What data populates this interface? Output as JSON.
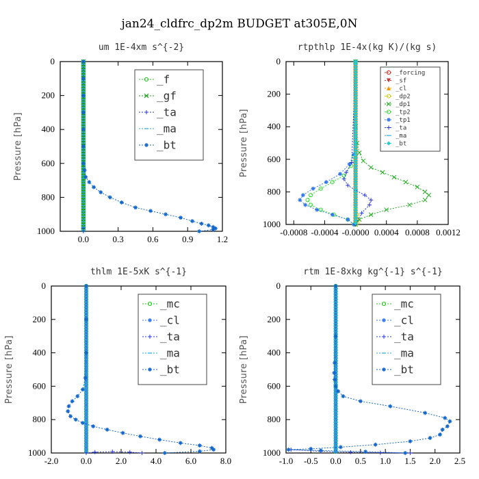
{
  "title": "jan24_cldfrc_dp2m  BUDGET at305E,0N",
  "chart_data": [
    {
      "type": "line",
      "title": "um   1E-4xm s^{-2}",
      "ylabel": "Pressure [hPa]",
      "ylim": [
        1000,
        0
      ],
      "xlim": [
        -0.2,
        1.2
      ],
      "xticks": [
        "0.0",
        "0.3",
        "0.6",
        "0.9",
        "1.2"
      ],
      "xtick_values": [
        0,
        0.3,
        0.6,
        0.9,
        1.2
      ],
      "yticks": [
        "0",
        "200",
        "400",
        "600",
        "800",
        "1000"
      ],
      "legend": {
        "position": "top-right",
        "size": "large",
        "entries": [
          "_f",
          "_gf",
          "_ta",
          "_ma",
          "_bt"
        ]
      },
      "series": [
        {
          "name": "_f",
          "color": "#22cc22",
          "marker": "o",
          "x": [
            0,
            0
          ],
          "y": [
            0,
            1000
          ]
        },
        {
          "name": "_gf",
          "color": "#119911",
          "marker": "x",
          "x": [
            0,
            0
          ],
          "y": [
            0,
            1000
          ]
        },
        {
          "name": "_ta",
          "color": "#2233ee",
          "marker": "+",
          "x": [
            0,
            0
          ],
          "y": [
            980,
            1000
          ]
        },
        {
          "name": "_ma",
          "color": "#22aadd",
          "marker": "-",
          "x": [
            0,
            0
          ],
          "y": [
            0,
            1000
          ]
        },
        {
          "name": "_bt",
          "color": "#1166cc",
          "marker": "*",
          "x": [
            0,
            0,
            0,
            0,
            0,
            0,
            0,
            0.01,
            0.02,
            0.05,
            0.09,
            0.15,
            0.23,
            0.33,
            0.45,
            0.58,
            0.71,
            0.84,
            0.94,
            1.02,
            1.08,
            1.12,
            1.14,
            1.12,
            1.0
          ],
          "y": [
            0,
            100,
            200,
            300,
            400,
            500,
            600,
            640,
            680,
            710,
            740,
            770,
            800,
            830,
            860,
            880,
            900,
            920,
            940,
            955,
            965,
            975,
            983,
            990,
            1000
          ]
        }
      ]
    },
    {
      "type": "line",
      "title": "rtpthlp   1E-4x(kg K)/(kg s)",
      "ylabel": "Pressure [hPa]",
      "ylim": [
        1000,
        0
      ],
      "xlim": [
        -0.0009,
        0.0012
      ],
      "xticks": [
        "-0.0008",
        "-0.0004",
        "-0.0000",
        "0.0004",
        "0.0008",
        "0.0012"
      ],
      "xtick_values": [
        -0.0008,
        -0.0004,
        0,
        0.0004,
        0.0008,
        0.0012
      ],
      "yticks": [
        "0",
        "200",
        "400",
        "600",
        "800",
        "1000"
      ],
      "legend": {
        "position": "top-right",
        "size": "small",
        "entries": [
          "_forcing",
          "_sf",
          "_cl",
          "_dp2",
          "_dp1",
          "_tp2",
          "_tp1",
          "_ta",
          "_ma",
          "_bt"
        ]
      },
      "series": [
        {
          "name": "_forcing",
          "color": "#dd2222",
          "marker": "o",
          "x": [
            0,
            0
          ],
          "y": [
            0,
            1000
          ]
        },
        {
          "name": "_sf",
          "color": "#cc3333",
          "marker": "v",
          "x": [
            0,
            0
          ],
          "y": [
            0,
            1000
          ]
        },
        {
          "name": "_cl",
          "color": "#ee9900",
          "marker": "^",
          "x": [
            0,
            0
          ],
          "y": [
            0,
            1000
          ]
        },
        {
          "name": "_dp2",
          "color": "#cccc00",
          "marker": "o",
          "x": [
            0,
            0,
            2e-05,
            3e-05,
            2e-05,
            0
          ],
          "y": [
            0,
            900,
            940,
            970,
            990,
            1000
          ]
        },
        {
          "name": "_dp1",
          "color": "#22aa22",
          "marker": "x",
          "x": [
            0,
            0,
            2e-05,
            5e-05,
            0.0001,
            0.0002,
            0.00035,
            0.0005,
            0.00065,
            0.0008,
            0.0009,
            0.00095,
            0.0009,
            0.0007,
            0.0004,
            0.0002,
            5e-05,
            0
          ],
          "y": [
            0,
            400,
            500,
            560,
            610,
            650,
            680,
            710,
            740,
            770,
            800,
            820,
            850,
            880,
            910,
            940,
            970,
            1000
          ]
        },
        {
          "name": "_tp2",
          "color": "#33dd33",
          "marker": "o",
          "x": [
            0,
            -2e-05,
            -6e-05,
            -0.00015,
            -0.0003,
            -0.00045,
            -0.00058,
            -0.00062,
            -0.00058,
            -0.00045,
            -0.00028,
            -0.0001,
            -2e-05
          ],
          "y": [
            0,
            580,
            640,
            700,
            740,
            780,
            820,
            850,
            880,
            910,
            940,
            970,
            1000
          ]
        },
        {
          "name": "_tp1",
          "color": "#3377ee",
          "marker": "*",
          "x": [
            0,
            -2e-05,
            -8e-05,
            -0.0002,
            -0.00038,
            -0.00055,
            -0.00068,
            -0.00072,
            -0.00065,
            -0.0005,
            -0.0003,
            -0.0001,
            -2e-05
          ],
          "y": [
            0,
            570,
            630,
            690,
            740,
            780,
            820,
            850,
            880,
            910,
            940,
            970,
            1000
          ]
        },
        {
          "name": "_ta",
          "color": "#2233dd",
          "marker": "+",
          "x": [
            0,
            -5e-05,
            -0.00012,
            -0.00015,
            -0.0001,
            0,
            0.00012,
            0.0002,
            0.00018,
            8e-05,
            0
          ],
          "y": [
            0,
            620,
            680,
            720,
            760,
            790,
            820,
            850,
            880,
            930,
            1000
          ]
        },
        {
          "name": "_ma",
          "color": "#22aadd",
          "marker": "-",
          "x": [
            0,
            0
          ],
          "y": [
            0,
            1000
          ]
        },
        {
          "name": "_bt",
          "color": "#22cccc",
          "marker": "D",
          "x": [
            0,
            0
          ],
          "y": [
            0,
            1000
          ]
        }
      ]
    },
    {
      "type": "line",
      "title": "thlm   1E-5xK s^{-1}",
      "ylabel": "Pressure [hPa]",
      "ylim": [
        1000,
        0
      ],
      "xlim": [
        -2.0,
        8.0
      ],
      "xticks": [
        "-2.0",
        "0.0",
        "2.0",
        "4.0",
        "6.0",
        "8.0"
      ],
      "xtick_values": [
        -2,
        0,
        2,
        4,
        6,
        8
      ],
      "yticks": [
        "0",
        "200",
        "400",
        "600",
        "800",
        "1000"
      ],
      "legend": {
        "position": "top-right",
        "size": "large",
        "entries": [
          "_mc",
          "_cl",
          "_ta",
          "_ma",
          "_bt"
        ]
      },
      "series": [
        {
          "name": "_mc",
          "color": "#22cc22",
          "marker": "o",
          "x": [
            0,
            0
          ],
          "y": [
            0,
            1000
          ]
        },
        {
          "name": "_cl",
          "color": "#3377ee",
          "marker": "*",
          "x": [
            0,
            0
          ],
          "y": [
            0,
            1000
          ]
        },
        {
          "name": "_ta",
          "color": "#2233dd",
          "marker": "+",
          "x": [
            0,
            0.5,
            1.5,
            2.5,
            3.2
          ],
          "y": [
            1000,
            995,
            992,
            995,
            1000
          ]
        },
        {
          "name": "_ma",
          "color": "#22aadd",
          "marker": "-",
          "x": [
            0,
            0
          ],
          "y": [
            0,
            1000
          ]
        },
        {
          "name": "_bt",
          "color": "#1166cc",
          "marker": "*",
          "x": [
            0,
            0,
            0,
            -0.05,
            -0.2,
            -0.5,
            -0.8,
            -1.0,
            -1.05,
            -0.9,
            -0.6,
            -0.2,
            0.4,
            1.2,
            2.1,
            3.1,
            4.2,
            5.4,
            6.5,
            7.2,
            7.3,
            6.5,
            4.5
          ],
          "y": [
            0,
            200,
            400,
            550,
            620,
            660,
            690,
            720,
            750,
            780,
            800,
            820,
            840,
            860,
            880,
            900,
            920,
            940,
            955,
            970,
            980,
            990,
            1000
          ]
        }
      ]
    },
    {
      "type": "line",
      "title": "rtm   1E-8xkg kg^{-1} s^{-1}",
      "ylabel": "Pressure [hPa]",
      "ylim": [
        1000,
        0
      ],
      "xlim": [
        -1.0,
        2.5
      ],
      "xticks": [
        "-1.0",
        "-0.5",
        "0.0",
        "0.5",
        "1.0",
        "1.5",
        "2.0",
        "2.5"
      ],
      "xtick_values": [
        -1,
        -0.5,
        0,
        0.5,
        1,
        1.5,
        2,
        2.5
      ],
      "yticks": [
        "0",
        "200",
        "400",
        "600",
        "800",
        "1000"
      ],
      "legend": {
        "position": "top-right",
        "size": "large",
        "entries": [
          "_mc",
          "_cl",
          "_ta",
          "_ma",
          "_bt"
        ]
      },
      "series": [
        {
          "name": "_mc",
          "color": "#22cc22",
          "marker": "o",
          "x": [
            0,
            0
          ],
          "y": [
            0,
            1000
          ]
        },
        {
          "name": "_cl",
          "color": "#3377ee",
          "marker": "*",
          "x": [
            0,
            0
          ],
          "y": [
            0,
            1000
          ]
        },
        {
          "name": "_ta",
          "color": "#2233dd",
          "marker": "+",
          "x": [
            -0.9,
            -0.3,
            0.3,
            0.9,
            1.5
          ],
          "y": [
            980,
            990,
            995,
            998,
            1000
          ]
        },
        {
          "name": "_ma",
          "color": "#22aadd",
          "marker": "-",
          "x": [
            0,
            0
          ],
          "y": [
            0,
            1000
          ]
        },
        {
          "name": "_bt",
          "color": "#1166cc",
          "marker": "*",
          "x": [
            0,
            0,
            -0.02,
            -0.03,
            -0.02,
            0,
            0.05,
            0.15,
            0.5,
            1.1,
            1.8,
            2.2,
            2.3,
            2.25,
            2.15,
            2.1,
            1.9,
            1.5,
            0.8,
            0.1,
            -0.5,
            -0.95,
            -0.3,
            0.6,
            1.4
          ],
          "y": [
            0,
            300,
            460,
            520,
            560,
            600,
            630,
            660,
            690,
            720,
            760,
            790,
            810,
            840,
            860,
            890,
            910,
            930,
            950,
            965,
            975,
            980,
            985,
            992,
            1000
          ]
        }
      ]
    }
  ]
}
